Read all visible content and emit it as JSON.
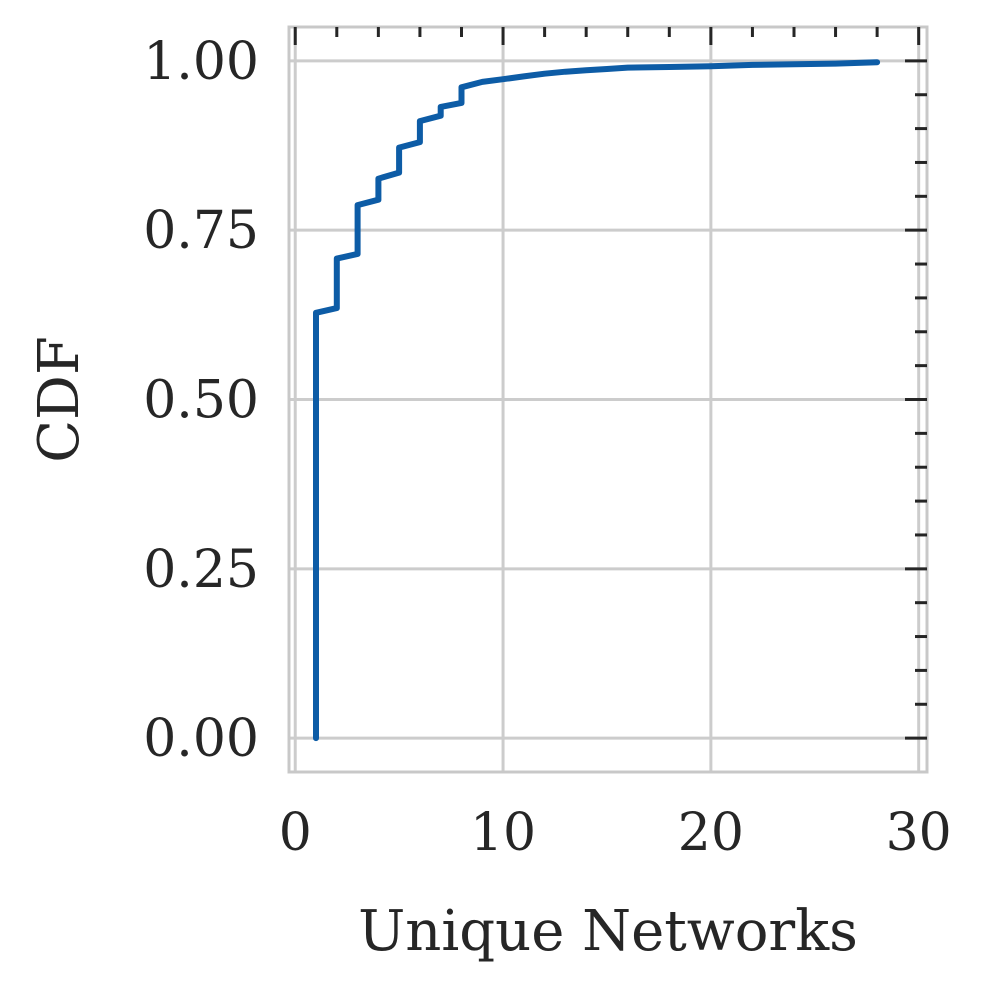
{
  "chart_data": {
    "type": "line",
    "title": "",
    "xlabel": "Unique Networks",
    "ylabel": "CDF",
    "xlim": [
      -0.3,
      30.4
    ],
    "ylim": [
      -0.05,
      1.05
    ],
    "x_ticks": [
      0,
      10,
      20,
      30
    ],
    "x_tick_labels": [
      "0",
      "10",
      "20",
      "30"
    ],
    "y_ticks": [
      0,
      0.25,
      0.5,
      0.75,
      1
    ],
    "y_tick_labels": [
      "0.00",
      "0.25",
      "0.50",
      "0.75",
      "1.00"
    ],
    "grid": true,
    "legend": "none",
    "series": [
      {
        "color": "#0d5ca6",
        "x": [
          1,
          1,
          2,
          2,
          3,
          3,
          4,
          4,
          5,
          5,
          6,
          6,
          7,
          7,
          8,
          8,
          9,
          10,
          11,
          12,
          13,
          14,
          15,
          16,
          18,
          20,
          22,
          24,
          26,
          28
        ],
        "y": [
          0,
          0.628,
          0.635,
          0.708,
          0.715,
          0.787,
          0.795,
          0.826,
          0.835,
          0.872,
          0.88,
          0.911,
          0.919,
          0.932,
          0.938,
          0.961,
          0.969,
          0.973,
          0.977,
          0.981,
          0.984,
          0.986,
          0.988,
          0.99,
          0.991,
          0.992,
          0.994,
          0.995,
          0.996,
          0.998
        ]
      }
    ]
  }
}
